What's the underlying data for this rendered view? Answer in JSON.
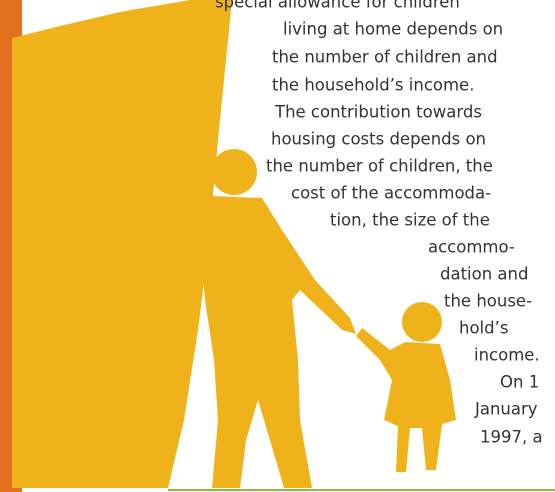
{
  "lines": [
    "special allowance for children",
    "living at home depends on",
    "the number of children and",
    "the household’s income.",
    "The contribution towards",
    "housing costs depends on",
    "the number of children, the",
    "cost of the accommoda-",
    "tion, the size of the",
    "accommo-",
    "dation and",
    "the house-",
    "hold’s",
    "income.",
    "On 1",
    "January",
    "1997, a"
  ]
}
